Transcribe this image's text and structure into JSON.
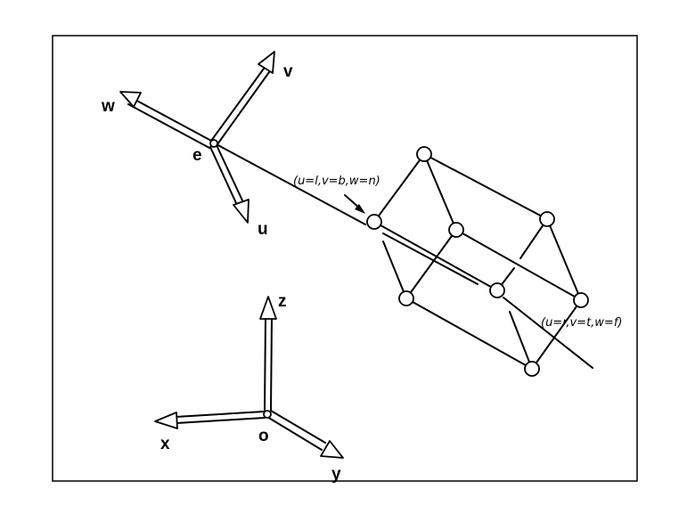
{
  "camera_frame": {
    "origin_label": "e",
    "axes": [
      {
        "key": "w",
        "label": "w"
      },
      {
        "key": "v",
        "label": "v"
      },
      {
        "key": "u",
        "label": "u"
      }
    ]
  },
  "world_frame": {
    "origin_label": "o",
    "axes": [
      {
        "key": "z",
        "label": "z"
      },
      {
        "key": "x",
        "label": "x"
      },
      {
        "key": "y",
        "label": "y"
      }
    ]
  },
  "view_volume": {
    "near_corner_label": "(u=l,v=b,w=n)",
    "far_corner_label": "(u=r,v=t,w=f)"
  }
}
